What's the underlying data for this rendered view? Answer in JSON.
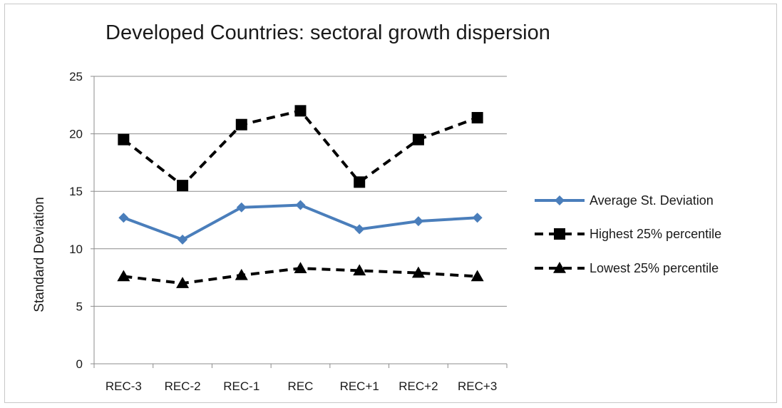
{
  "chart_data": {
    "type": "line",
    "title": "Developed Countries: sectoral growth dispersion",
    "xlabel": "",
    "ylabel": "Standard Deviation",
    "categories": [
      "REC-3",
      "REC-2",
      "REC-1",
      "REC",
      "REC+1",
      "REC+2",
      "REC+3"
    ],
    "ylim": [
      0,
      25
    ],
    "yticks": [
      0,
      5,
      10,
      15,
      20,
      25
    ],
    "grid": true,
    "legend": "right",
    "series": [
      {
        "name": "Average St. Deviation",
        "values": [
          12.7,
          10.8,
          13.6,
          13.8,
          11.7,
          12.4,
          12.7
        ],
        "color": "#4a7ebb",
        "line_style": "solid",
        "marker": "diamond"
      },
      {
        "name": "Highest 25% percentile",
        "values": [
          19.5,
          15.5,
          20.8,
          22.0,
          15.8,
          19.5,
          21.4
        ],
        "color": "#000000",
        "line_style": "dashed",
        "marker": "square"
      },
      {
        "name": "Lowest 25% percentile",
        "values": [
          7.6,
          7.0,
          7.7,
          8.3,
          8.1,
          7.9,
          7.6
        ],
        "color": "#000000",
        "line_style": "dashed",
        "marker": "triangle"
      }
    ]
  }
}
